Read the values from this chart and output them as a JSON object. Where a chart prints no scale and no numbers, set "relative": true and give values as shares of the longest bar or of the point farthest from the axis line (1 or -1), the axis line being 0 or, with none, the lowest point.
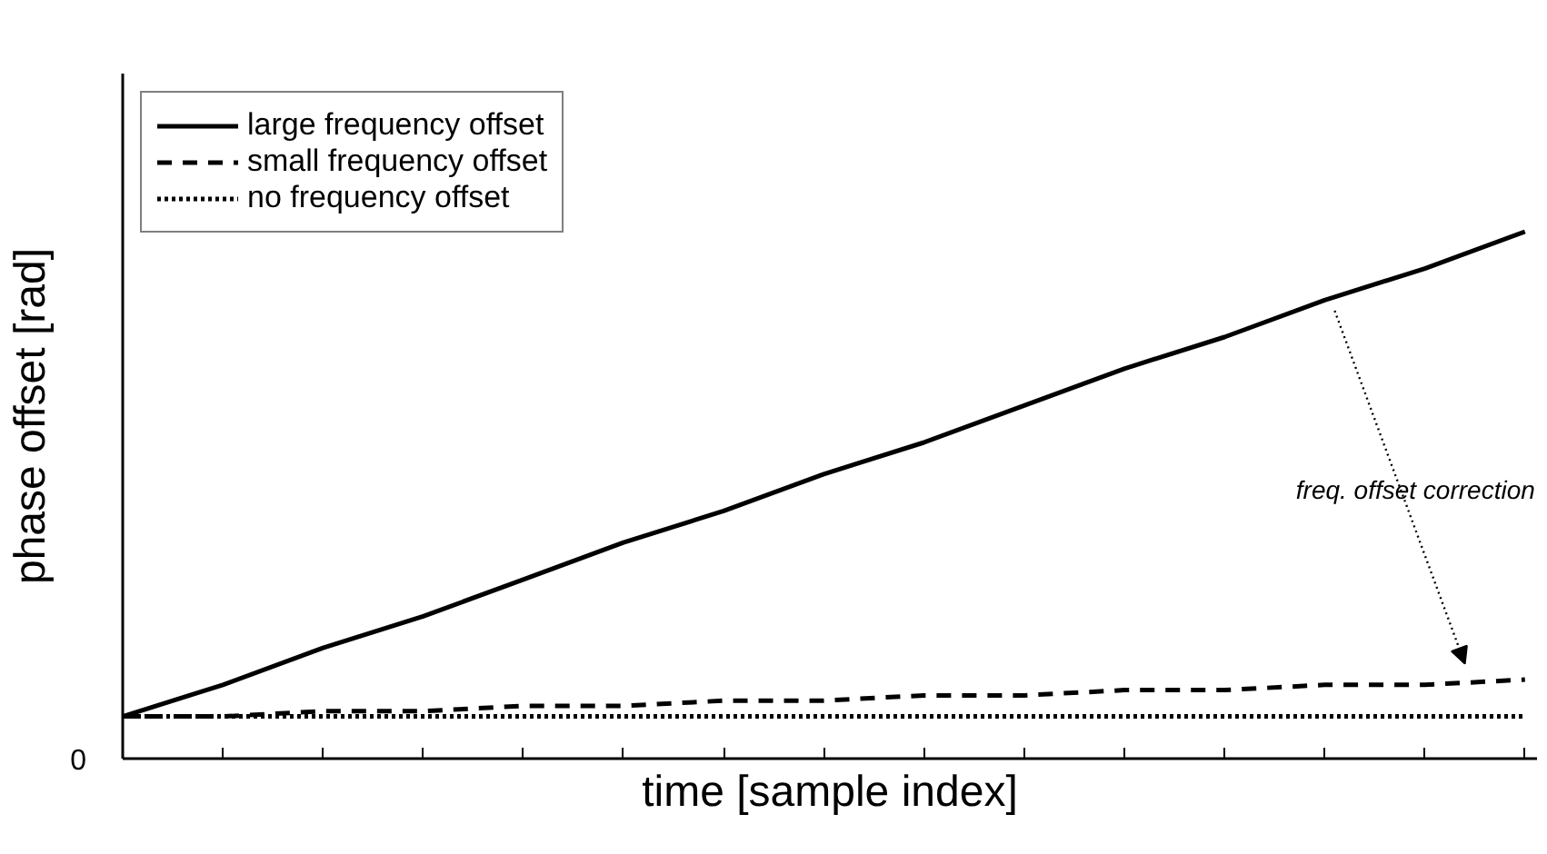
{
  "chart_data": {
    "type": "line",
    "relative": true,
    "xlabel": "time [sample index]",
    "ylabel": "phase offset [rad]",
    "categories": [
      null,
      null,
      null,
      null,
      null,
      null,
      null,
      null,
      null,
      null,
      null,
      null,
      null,
      null,
      null
    ],
    "series": [
      {
        "name": "large frequency offset",
        "color": "#000000",
        "line_style": "solid",
        "values": [
          0.08,
          0.14,
          0.21,
          0.27,
          0.34,
          0.41,
          0.47,
          0.54,
          0.6,
          0.67,
          0.74,
          0.8,
          0.87,
          0.93,
          1.0
        ]
      },
      {
        "name": "small frequency offset",
        "color": "#000000",
        "line_style": "dashed",
        "values": [
          0.08,
          0.08,
          0.09,
          0.09,
          0.1,
          0.1,
          0.11,
          0.11,
          0.12,
          0.12,
          0.13,
          0.13,
          0.14,
          0.14,
          0.15
        ]
      },
      {
        "name": "no frequency offset",
        "color": "#000000",
        "line_style": "dotted",
        "values": [
          0.08,
          0.08,
          0.08,
          0.08,
          0.08,
          0.08,
          0.08,
          0.08,
          0.08,
          0.08,
          0.08,
          0.08,
          0.08,
          0.08,
          0.08
        ]
      }
    ],
    "annotations": [
      "0",
      "freq. offset correction"
    ],
    "legend": "top left",
    "grid": false,
    "marker": "none"
  }
}
